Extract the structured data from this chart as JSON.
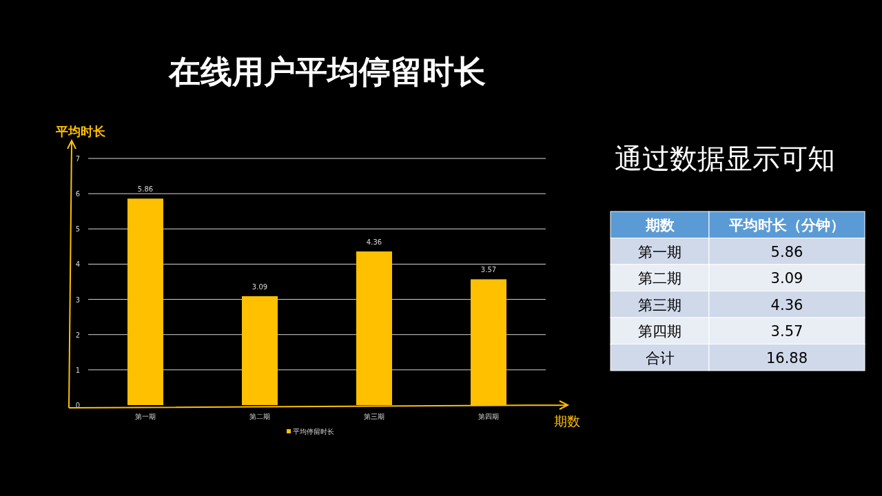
{
  "chart_data": [
    {
      "type": "bar",
      "title": "在线用户平均停留时长",
      "xlabel": "期数",
      "ylabel": "平均时长",
      "categories": [
        "第一期",
        "第二期",
        "第三期",
        "第四期"
      ],
      "series": [
        {
          "name": "平均停留时长",
          "color": "#ffc000",
          "values": [
            5.86,
            3.09,
            4.36,
            3.57
          ]
        }
      ],
      "ylim": [
        0,
        7
      ],
      "yticks": [
        0,
        1,
        2,
        3,
        4,
        5,
        6,
        7
      ],
      "grid": "y",
      "legend": "bottom",
      "data_labels": true
    },
    {
      "type": "other",
      "annotations": [
        "通过数据显示可知",
        "期数",
        "平均时长（分钟）",
        "第一期",
        "5.86",
        "第二期",
        "3.09",
        "第三期",
        "4.36",
        "第四期",
        "3.57",
        "合计",
        "16.88"
      ]
    }
  ]
}
